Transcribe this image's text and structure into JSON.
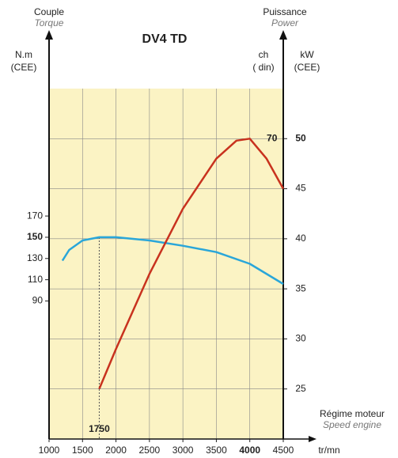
{
  "chart_data": {
    "type": "line",
    "title": "DV4 TD",
    "left_axis": {
      "title": "Couple",
      "subtitle": "Torque",
      "unit": "N.m",
      "unit2": "(CEE)"
    },
    "right_axis": {
      "title": "Puissance",
      "subtitle": "Power",
      "unit_ch": "ch",
      "unit_ch2": "( din)",
      "unit": "kW",
      "unit2": "(CEE)"
    },
    "x_axis": {
      "title": "Régime moteur",
      "subtitle": "Speed engine",
      "unit": "tr/mn"
    },
    "xlim": [
      1000,
      4500
    ],
    "xticks": [
      1000,
      1500,
      2000,
      2500,
      3000,
      3500,
      4000,
      4500
    ],
    "ylim": [
      -40,
      290
    ],
    "yticks": [
      90,
      110,
      130,
      150,
      170
    ],
    "y2lim": [
      20,
      55
    ],
    "y2ticks": [
      25,
      30,
      35,
      40,
      45,
      50
    ],
    "grid": true,
    "background": "#fbf3c4",
    "series": [
      {
        "color": "#2aa6d9",
        "axis": "y",
        "x": [
          1200,
          1300,
          1500,
          1750,
          2000,
          2500,
          3000,
          3500,
          4000,
          4500
        ],
        "values": [
          128,
          138,
          147,
          150,
          150,
          147,
          142,
          136,
          125,
          106
        ]
      },
      {
        "color": "#c8321e",
        "axis": "y2",
        "x": [
          1750,
          2000,
          2500,
          3000,
          3500,
          3800,
          4000,
          4250,
          4500
        ],
        "values": [
          25,
          29,
          36.5,
          43,
          48,
          49.8,
          50,
          48,
          45
        ]
      }
    ],
    "annotations": [
      {
        "text": "70",
        "x": 4000,
        "y2": 50
      },
      {
        "text": "1750",
        "x": 1750,
        "y": 150
      }
    ]
  }
}
